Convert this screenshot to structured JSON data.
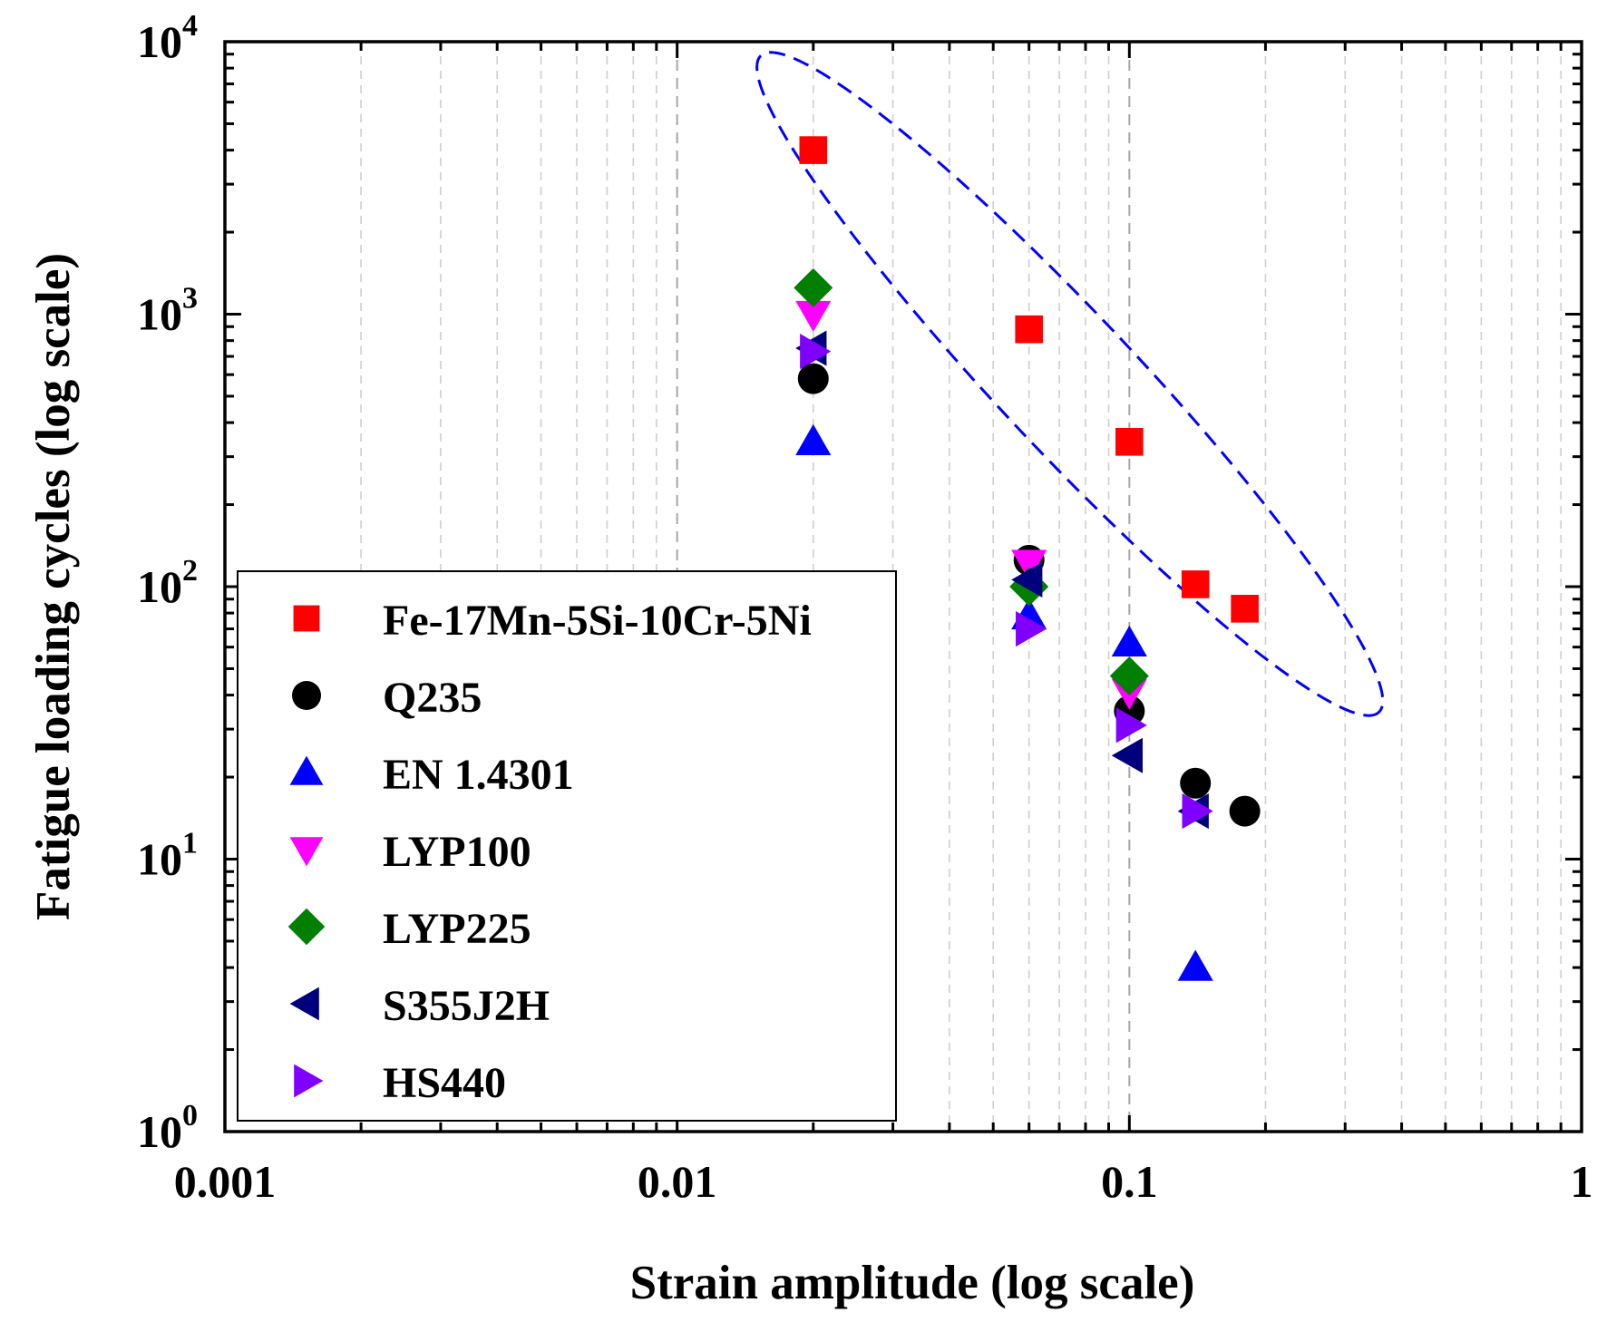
{
  "chart_data": {
    "type": "scatter",
    "title": "",
    "xlabel": "Strain amplitude (log scale)",
    "ylabel": "Fatigue loading cycles (log scale)",
    "xscale": "log",
    "yscale": "log",
    "xlim": [
      0.001,
      1
    ],
    "ylim": [
      1,
      10000
    ],
    "x_ticks": [
      "0.001",
      "0.01",
      "0.1",
      "1"
    ],
    "y_ticks": [
      {
        "base": "10",
        "exp": "0"
      },
      {
        "base": "10",
        "exp": "1"
      },
      {
        "base": "10",
        "exp": "2"
      },
      {
        "base": "10",
        "exp": "3"
      },
      {
        "base": "10",
        "exp": "4"
      }
    ],
    "grid": "vertical dashed",
    "legend_position": "lower-left",
    "series": [
      {
        "name": "Fe-17Mn-5Si-10Cr-5Ni",
        "marker": "square",
        "color": "#ff0000",
        "points": [
          [
            0.02,
            4000
          ],
          [
            0.06,
            880
          ],
          [
            0.1,
            340
          ],
          [
            0.14,
            102
          ],
          [
            0.18,
            83
          ]
        ]
      },
      {
        "name": "Q235",
        "marker": "circle",
        "color": "#000000",
        "points": [
          [
            0.02,
            580
          ],
          [
            0.06,
            125
          ],
          [
            0.1,
            35
          ],
          [
            0.14,
            19
          ],
          [
            0.18,
            15
          ]
        ]
      },
      {
        "name": "EN 1.4301",
        "marker": "triangle-up",
        "color": "#0000ff",
        "points": [
          [
            0.02,
            340
          ],
          [
            0.06,
            78
          ],
          [
            0.1,
            62
          ],
          [
            0.14,
            4
          ]
        ]
      },
      {
        "name": "LYP100",
        "marker": "triangle-down",
        "color": "#ff00ff",
        "points": [
          [
            0.02,
            1000
          ],
          [
            0.06,
            122
          ],
          [
            0.1,
            41
          ]
        ]
      },
      {
        "name": "LYP225",
        "marker": "diamond",
        "color": "#007f00",
        "points": [
          [
            0.02,
            1250
          ],
          [
            0.06,
            100
          ],
          [
            0.1,
            47
          ]
        ]
      },
      {
        "name": "S355J2H",
        "marker": "triangle-left",
        "color": "#00007f",
        "points": [
          [
            0.02,
            750
          ],
          [
            0.06,
            106
          ],
          [
            0.1,
            24
          ],
          [
            0.14,
            15
          ]
        ]
      },
      {
        "name": "HS440",
        "marker": "triangle-right",
        "color": "#8000ff",
        "points": [
          [
            0.02,
            730
          ],
          [
            0.06,
            70
          ],
          [
            0.1,
            31
          ],
          [
            0.14,
            15
          ]
        ]
      }
    ],
    "annotation": {
      "shape": "ellipse",
      "style": "dashed",
      "color": "#0000ff",
      "encloses": "Fe-17Mn-5Si-10Cr-5Ni"
    }
  }
}
